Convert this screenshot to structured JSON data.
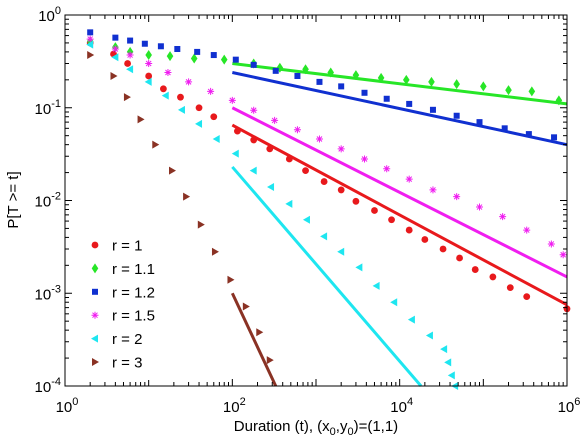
{
  "chart_data": {
    "type": "scatter",
    "title": "",
    "xlabel": "Duration (t), (x",
    "xlabel_sub0": "0",
    "xlabel_mid": ",y",
    "xlabel_sub1": "0",
    "xlabel_end": ")=(1,1)",
    "ylabel": "P[T >= t]",
    "xscale": "log",
    "yscale": "log",
    "xlim": [
      1,
      1000000
    ],
    "ylim": [
      0.0001,
      1
    ],
    "grid": false,
    "legend_position": "bottom-left",
    "x_ticks": [
      {
        "base": "10",
        "exp": "0",
        "value": 1
      },
      {
        "base": "10",
        "exp": "2",
        "value": 100
      },
      {
        "base": "10",
        "exp": "4",
        "value": 10000
      },
      {
        "base": "10",
        "exp": "6",
        "value": 1000000
      }
    ],
    "y_ticks": [
      {
        "base": "10",
        "exp": "-4",
        "value": 0.0001
      },
      {
        "base": "10",
        "exp": "-3",
        "value": 0.001
      },
      {
        "base": "10",
        "exp": "-2",
        "value": 0.01
      },
      {
        "base": "10",
        "exp": "-1",
        "value": 0.1
      },
      {
        "base": "10",
        "exp": "0",
        "value": 1
      }
    ],
    "series": [
      {
        "name": "r = 1",
        "color": "#e8191c",
        "marker": "circle",
        "points": [
          [
            2,
            0.5
          ],
          [
            3.8,
            0.38
          ],
          [
            5.6,
            0.3
          ],
          [
            10,
            0.22
          ],
          [
            15,
            0.16
          ],
          [
            24,
            0.13
          ],
          [
            40,
            0.1
          ],
          [
            60,
            0.08
          ],
          [
            115,
            0.056
          ],
          [
            180,
            0.045
          ],
          [
            280,
            0.036
          ],
          [
            480,
            0.028
          ],
          [
            750,
            0.021
          ],
          [
            1250,
            0.016
          ],
          [
            2000,
            0.013
          ],
          [
            3000,
            0.0098
          ],
          [
            5000,
            0.0078
          ],
          [
            8000,
            0.0062
          ],
          [
            13000,
            0.0048
          ],
          [
            20000,
            0.0038
          ],
          [
            33000,
            0.003
          ],
          [
            52000,
            0.0024
          ],
          [
            80000,
            0.0018
          ],
          [
            130000,
            0.0015
          ],
          [
            210000,
            0.00115
          ],
          [
            330000,
            0.00092
          ],
          [
            1000000,
            0.00068
          ]
        ],
        "fit": {
          "x": [
            100,
            1000000
          ],
          "y": [
            0.065,
            0.00075
          ]
        }
      },
      {
        "name": "r = 1.1",
        "color": "#27e627",
        "marker": "diamond",
        "points": [
          [
            2,
            0.52
          ],
          [
            4,
            0.45
          ],
          [
            6,
            0.4
          ],
          [
            10,
            0.37
          ],
          [
            18,
            0.36
          ],
          [
            35,
            0.34
          ],
          [
            80,
            0.33
          ],
          [
            180,
            0.3
          ],
          [
            370,
            0.27
          ],
          [
            750,
            0.26
          ],
          [
            1500,
            0.24
          ],
          [
            3000,
            0.225
          ],
          [
            6000,
            0.21
          ],
          [
            12000,
            0.2
          ],
          [
            24000,
            0.19
          ],
          [
            48000,
            0.18
          ],
          [
            100000,
            0.17
          ],
          [
            200000,
            0.155
          ],
          [
            380000,
            0.15
          ],
          [
            800000,
            0.12
          ]
        ],
        "fit": {
          "x": [
            100,
            1000000
          ],
          "y": [
            0.3,
            0.11
          ]
        }
      },
      {
        "name": "r = 1.2",
        "color": "#1030d0",
        "marker": "square",
        "points": [
          [
            2,
            0.65
          ],
          [
            4,
            0.57
          ],
          [
            6,
            0.53
          ],
          [
            9,
            0.49
          ],
          [
            14,
            0.46
          ],
          [
            22,
            0.43
          ],
          [
            38,
            0.4
          ],
          [
            60,
            0.37
          ],
          [
            110,
            0.33
          ],
          [
            180,
            0.29
          ],
          [
            330,
            0.25
          ],
          [
            600,
            0.22
          ],
          [
            1100,
            0.19
          ],
          [
            2000,
            0.17
          ],
          [
            3800,
            0.145
          ],
          [
            7000,
            0.125
          ],
          [
            13000,
            0.11
          ],
          [
            25000,
            0.095
          ],
          [
            48000,
            0.082
          ],
          [
            90000,
            0.07
          ],
          [
            180000,
            0.06
          ],
          [
            350000,
            0.052
          ],
          [
            700000,
            0.048
          ]
        ],
        "fit": {
          "x": [
            100,
            1000000
          ],
          "y": [
            0.24,
            0.04
          ]
        }
      },
      {
        "name": "r = 1.5",
        "color": "#f01ef0",
        "marker": "asterisk",
        "points": [
          [
            2,
            0.55
          ],
          [
            4,
            0.43
          ],
          [
            6,
            0.37
          ],
          [
            10,
            0.3
          ],
          [
            17,
            0.24
          ],
          [
            30,
            0.19
          ],
          [
            55,
            0.15
          ],
          [
            100,
            0.12
          ],
          [
            180,
            0.094
          ],
          [
            320,
            0.073
          ],
          [
            600,
            0.058
          ],
          [
            1100,
            0.046
          ],
          [
            2000,
            0.036
          ],
          [
            3800,
            0.028
          ],
          [
            7000,
            0.022
          ],
          [
            13000,
            0.017
          ],
          [
            25000,
            0.013
          ],
          [
            48000,
            0.011
          ],
          [
            90000,
            0.0085
          ],
          [
            170000,
            0.0067
          ],
          [
            330000,
            0.0048
          ],
          [
            650000,
            0.0034
          ],
          [
            900000,
            0.0026
          ]
        ],
        "fit": {
          "x": [
            100,
            1000000
          ],
          "y": [
            0.1,
            0.0015
          ]
        }
      },
      {
        "name": "r = 2",
        "color": "#1ee6f0",
        "marker": "triangle-left",
        "points": [
          [
            2,
            0.48
          ],
          [
            4,
            0.35
          ],
          [
            6,
            0.26
          ],
          [
            10,
            0.19
          ],
          [
            16,
            0.135
          ],
          [
            25,
            0.095
          ],
          [
            40,
            0.067
          ],
          [
            65,
            0.046
          ],
          [
            110,
            0.032
          ],
          [
            180,
            0.021
          ],
          [
            290,
            0.014
          ],
          [
            480,
            0.0092
          ],
          [
            780,
            0.0062
          ],
          [
            1250,
            0.0041
          ],
          [
            2000,
            0.0028
          ],
          [
            3300,
            0.0019
          ],
          [
            5300,
            0.0012
          ],
          [
            8600,
            0.0008
          ],
          [
            14000,
            0.00052
          ],
          [
            23000,
            0.00035
          ],
          [
            34000,
            0.00025
          ],
          [
            38000,
            0.00018
          ],
          [
            42000,
            0.00013
          ],
          [
            46000,
            0.0001
          ]
        ],
        "fit": {
          "x": [
            100,
            18000
          ],
          "y": [
            0.023,
            0.0001
          ]
        }
      },
      {
        "name": "r = 3",
        "color": "#8a3224",
        "marker": "triangle-right",
        "points": [
          [
            2,
            0.37
          ],
          [
            3.8,
            0.22
          ],
          [
            5.5,
            0.13
          ],
          [
            8,
            0.075
          ],
          [
            12,
            0.04
          ],
          [
            19,
            0.021
          ],
          [
            28,
            0.011
          ],
          [
            42,
            0.0055
          ],
          [
            62,
            0.0028
          ],
          [
            95,
            0.0014
          ],
          [
            145,
            0.00072
          ],
          [
            210,
            0.00038
          ],
          [
            280,
            0.00019
          ]
        ],
        "fit": {
          "x": [
            100,
            330
          ],
          "y": [
            0.001,
            0.0001
          ]
        }
      }
    ]
  }
}
